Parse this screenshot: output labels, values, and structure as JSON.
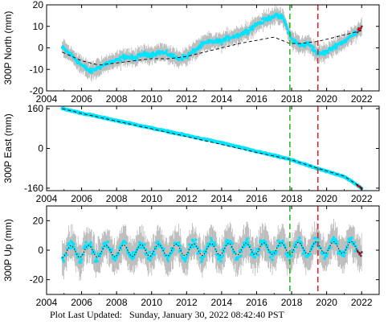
{
  "footer": {
    "label": "Plot Last Updated:",
    "timestamp": "Sunday, January 30, 2022 08:42:40 PST"
  },
  "colors": {
    "data": "#00e5ff",
    "error_bars": "#b8b8b8",
    "model": "#000000",
    "recent": "#e00000",
    "event_green": "#22b222",
    "event_red": "#e02020"
  },
  "chart_data": [
    {
      "type": "scatter",
      "ylabel": "300P North (mm)",
      "xlim": [
        2004,
        2023
      ],
      "ylim": [
        -20,
        20
      ],
      "xticks": [
        2004,
        2006,
        2008,
        2010,
        2012,
        2014,
        2016,
        2018,
        2020,
        2022
      ],
      "yticks": [
        -20,
        -10,
        0,
        10,
        20
      ],
      "grid": false,
      "vlines": [
        {
          "x": 2017.9,
          "color": "green",
          "style": "dashed"
        },
        {
          "x": 2019.5,
          "color": "red",
          "style": "dashed"
        }
      ],
      "series": [
        {
          "role": "observed",
          "x": [
            2004.9,
            2005.5,
            2006.0,
            2006.5,
            2007.0,
            2007.5,
            2008.0,
            2008.5,
            2009.0,
            2009.5,
            2010.0,
            2010.5,
            2011.0,
            2011.5,
            2012.0,
            2012.5,
            2013.0,
            2013.5,
            2014.0,
            2014.5,
            2015.0,
            2015.5,
            2016.0,
            2016.5,
            2017.0,
            2017.5,
            2018.0,
            2018.5,
            2019.0,
            2019.5,
            2020.0,
            2020.5,
            2021.0,
            2021.5,
            2022.0
          ],
          "y": [
            0,
            -4,
            -8,
            -11,
            -9,
            -7,
            -6,
            -4,
            -5,
            -3,
            -3,
            -2,
            -3,
            -5,
            -4,
            -1,
            2,
            3,
            3,
            5,
            6,
            8,
            11,
            13,
            15,
            14,
            4,
            1,
            2,
            -3,
            -2,
            1,
            3,
            6,
            10
          ]
        },
        {
          "role": "model",
          "x": [
            2004.9,
            2006.0,
            2007.0,
            2008.0,
            2009.0,
            2010.0,
            2011.0,
            2012.0,
            2013.0,
            2014.0,
            2015.0,
            2016.0,
            2017.0,
            2017.9,
            2018.5,
            2019.5,
            2020.5,
            2021.5,
            2022.0
          ],
          "y": [
            -2,
            -6,
            -8,
            -7,
            -6,
            -5,
            -5,
            -4,
            -2,
            0,
            2,
            3.5,
            5,
            2,
            2,
            3,
            5,
            7,
            8
          ]
        }
      ]
    },
    {
      "type": "scatter",
      "ylabel": "300P East (mm)",
      "xlim": [
        2004,
        2023
      ],
      "ylim": [
        -170,
        170
      ],
      "xticks": [
        2004,
        2006,
        2008,
        2010,
        2012,
        2014,
        2016,
        2018,
        2020,
        2022
      ],
      "yticks": [
        -160,
        0,
        160
      ],
      "grid": false,
      "vlines": [
        {
          "x": 2017.9,
          "color": "green",
          "style": "dashed"
        },
        {
          "x": 2019.5,
          "color": "red",
          "style": "dashed"
        }
      ],
      "series": [
        {
          "role": "observed",
          "x": [
            2004.9,
            2006.0,
            2008.0,
            2010.0,
            2012.0,
            2014.0,
            2016.0,
            2017.9,
            2019.5,
            2021.0,
            2022.0
          ],
          "y": [
            160,
            142,
            112,
            82,
            52,
            22,
            -12,
            -44,
            -82,
            -113,
            -160
          ]
        },
        {
          "role": "model",
          "x": [
            2004.9,
            2006.0,
            2008.0,
            2010.0,
            2012.0,
            2014.0,
            2016.0,
            2017.9,
            2019.5,
            2021.0,
            2022.0
          ],
          "y": [
            160,
            141,
            110,
            79,
            48,
            16,
            -16,
            -44,
            -80,
            -112,
            -158
          ]
        }
      ]
    },
    {
      "type": "scatter",
      "ylabel": "300P Up (mm)",
      "xlim": [
        2004,
        2023
      ],
      "ylim": [
        -30,
        30
      ],
      "xticks": [
        2004,
        2006,
        2008,
        2010,
        2012,
        2014,
        2016,
        2018,
        2020,
        2022
      ],
      "yticks": [
        -20,
        0,
        20
      ],
      "grid": false,
      "vlines": [
        {
          "x": 2017.9,
          "color": "green",
          "style": "dashed"
        },
        {
          "x": 2019.5,
          "color": "red",
          "style": "dashed"
        }
      ],
      "series": [
        {
          "role": "observed",
          "seasonal_amplitude": 5,
          "x": [
            2004.9,
            2022.0
          ],
          "y": [
            -1,
            2
          ]
        },
        {
          "role": "model",
          "seasonal_amplitude": 4,
          "x": [
            2004.9,
            2022.0
          ],
          "y": [
            -1,
            2
          ]
        }
      ]
    }
  ]
}
